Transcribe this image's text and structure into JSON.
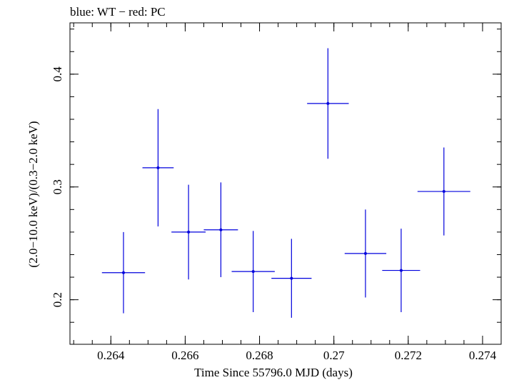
{
  "chart_data": {
    "type": "scatter",
    "title": "blue: WT − red: PC",
    "xlabel": "Time Since 55796.0 MJD (days)",
    "ylabel": "(2.0−10.0 keV)/(0.3−2.0 keV)",
    "xlim": [
      0.2629,
      0.2745
    ],
    "ylim": [
      0.1605,
      0.4455
    ],
    "x_ticks": [
      0.264,
      0.266,
      0.268,
      0.27,
      0.272,
      0.274
    ],
    "x_tick_labels": [
      "0.264",
      "0.266",
      "0.268",
      "0.27",
      "0.272",
      "0.274"
    ],
    "y_ticks": [
      0.2,
      0.3,
      0.4
    ],
    "y_tick_labels": [
      "0.2",
      "0.3",
      "0.4"
    ],
    "series": [
      {
        "name": "WT",
        "color": "#0000dd",
        "points": [
          {
            "x": 0.26434,
            "xerr": 0.00058,
            "y": 0.224,
            "yerr": 0.036
          },
          {
            "x": 0.26527,
            "xerr": 0.00042,
            "y": 0.317,
            "yerr": 0.052
          },
          {
            "x": 0.26609,
            "xerr": 0.00046,
            "y": 0.26,
            "yerr": 0.042
          },
          {
            "x": 0.26696,
            "xerr": 0.00046,
            "y": 0.262,
            "yerr": 0.042
          },
          {
            "x": 0.26783,
            "xerr": 0.00058,
            "y": 0.225,
            "yerr": 0.036
          },
          {
            "x": 0.26886,
            "xerr": 0.00054,
            "y": 0.219,
            "yerr": 0.035
          },
          {
            "x": 0.26984,
            "xerr": 0.00056,
            "y": 0.374,
            "yerr": 0.049
          },
          {
            "x": 0.27085,
            "xerr": 0.00056,
            "y": 0.241,
            "yerr": 0.039
          },
          {
            "x": 0.27181,
            "xerr": 0.00051,
            "y": 0.226,
            "yerr": 0.037
          },
          {
            "x": 0.27296,
            "xerr": 0.00071,
            "y": 0.296,
            "yerr": 0.039
          }
        ]
      }
    ]
  }
}
